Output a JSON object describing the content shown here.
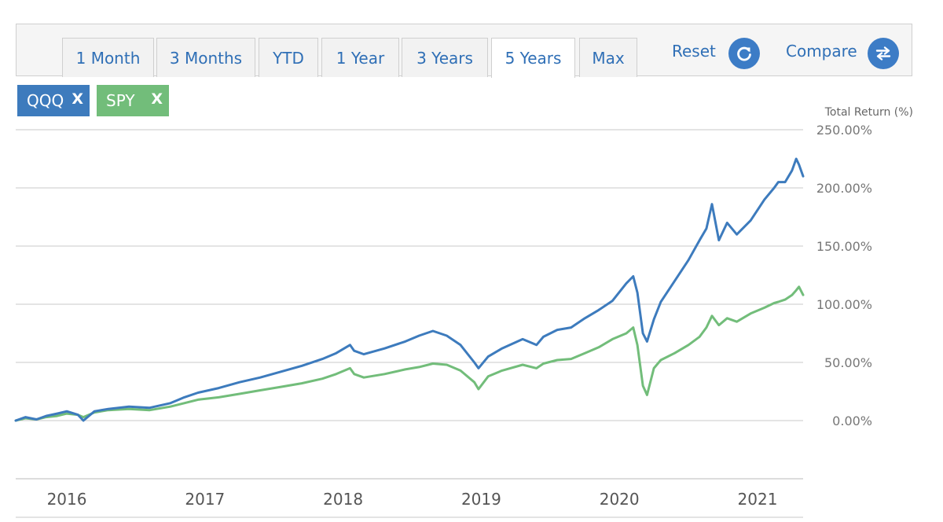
{
  "toolbar": {
    "tabs": [
      {
        "label": "1 Month"
      },
      {
        "label": "3 Months"
      },
      {
        "label": "YTD"
      },
      {
        "label": "1 Year"
      },
      {
        "label": "3 Years"
      },
      {
        "label": "5 Years"
      },
      {
        "label": "Max"
      }
    ],
    "active_tab": "5 Years",
    "reset_label": "Reset",
    "compare_label": "Compare"
  },
  "chips": [
    {
      "label": "QQQ",
      "remove": "X",
      "color": "#3d7bbd"
    },
    {
      "label": "SPY",
      "remove": "X",
      "color": "#72bd7a"
    }
  ],
  "chart_data": {
    "type": "line",
    "ylabel": "Total Return (%)",
    "y_ticks": [
      "250.00%",
      "200.00%",
      "150.00%",
      "100.00%",
      "50.00%",
      "0.00%"
    ],
    "ylim": [
      -50,
      250
    ],
    "x_ticks": [
      "2016",
      "2017",
      "2018",
      "2019",
      "2020",
      "2021"
    ],
    "x_tick_values": [
      2016.0,
      2017.0,
      2018.0,
      2019.0,
      2020.0,
      2021.0
    ],
    "xlim": [
      2015.63,
      2021.33
    ],
    "grid": true,
    "series": [
      {
        "name": "QQQ",
        "color": "#3d7bbd",
        "x": [
          2015.63,
          2015.7,
          2015.78,
          2015.85,
          2015.93,
          2016.0,
          2016.08,
          2016.12,
          2016.2,
          2016.3,
          2016.45,
          2016.6,
          2016.75,
          2016.85,
          2016.95,
          2017.1,
          2017.25,
          2017.4,
          2017.55,
          2017.7,
          2017.85,
          2017.95,
          2018.05,
          2018.08,
          2018.15,
          2018.3,
          2018.45,
          2018.55,
          2018.65,
          2018.75,
          2018.85,
          2018.95,
          2018.98,
          2019.05,
          2019.15,
          2019.3,
          2019.4,
          2019.45,
          2019.55,
          2019.65,
          2019.75,
          2019.85,
          2019.95,
          2020.05,
          2020.1,
          2020.13,
          2020.17,
          2020.2,
          2020.25,
          2020.3,
          2020.4,
          2020.5,
          2020.58,
          2020.63,
          2020.67,
          2020.72,
          2020.78,
          2020.85,
          2020.95,
          2021.05,
          2021.12,
          2021.15,
          2021.2,
          2021.25,
          2021.28,
          2021.3,
          2021.33
        ],
        "values": [
          0,
          3,
          1,
          4,
          6,
          8,
          5,
          0,
          8,
          10,
          12,
          11,
          15,
          20,
          24,
          28,
          33,
          37,
          42,
          47,
          53,
          58,
          65,
          60,
          57,
          62,
          68,
          73,
          77,
          73,
          65,
          50,
          45,
          55,
          62,
          70,
          65,
          72,
          78,
          80,
          88,
          95,
          103,
          118,
          124,
          110,
          75,
          68,
          87,
          102,
          120,
          138,
          155,
          165,
          186,
          155,
          170,
          160,
          172,
          190,
          200,
          205,
          205,
          215,
          225,
          220,
          210
        ]
      },
      {
        "name": "SPY",
        "color": "#72bd7a",
        "x": [
          2015.63,
          2015.7,
          2015.78,
          2015.85,
          2015.93,
          2016.0,
          2016.08,
          2016.12,
          2016.2,
          2016.3,
          2016.45,
          2016.6,
          2016.75,
          2016.85,
          2016.95,
          2017.1,
          2017.25,
          2017.4,
          2017.55,
          2017.7,
          2017.85,
          2017.95,
          2018.05,
          2018.08,
          2018.15,
          2018.3,
          2018.45,
          2018.55,
          2018.65,
          2018.75,
          2018.85,
          2018.95,
          2018.98,
          2019.05,
          2019.15,
          2019.3,
          2019.4,
          2019.45,
          2019.55,
          2019.65,
          2019.75,
          2019.85,
          2019.95,
          2020.05,
          2020.1,
          2020.13,
          2020.17,
          2020.2,
          2020.25,
          2020.3,
          2020.4,
          2020.5,
          2020.58,
          2020.63,
          2020.67,
          2020.72,
          2020.78,
          2020.85,
          2020.95,
          2021.05,
          2021.12,
          2021.15,
          2021.2,
          2021.25,
          2021.28,
          2021.3,
          2021.33
        ],
        "values": [
          0,
          2,
          1,
          3,
          4,
          6,
          5,
          3,
          7,
          9,
          10,
          9,
          12,
          15,
          18,
          20,
          23,
          26,
          29,
          32,
          36,
          40,
          45,
          40,
          37,
          40,
          44,
          46,
          49,
          48,
          43,
          33,
          27,
          38,
          43,
          48,
          45,
          49,
          52,
          53,
          58,
          63,
          70,
          75,
          80,
          65,
          30,
          22,
          45,
          52,
          58,
          65,
          72,
          80,
          90,
          82,
          88,
          85,
          92,
          97,
          101,
          102,
          104,
          108,
          112,
          115,
          108
        ]
      }
    ]
  }
}
